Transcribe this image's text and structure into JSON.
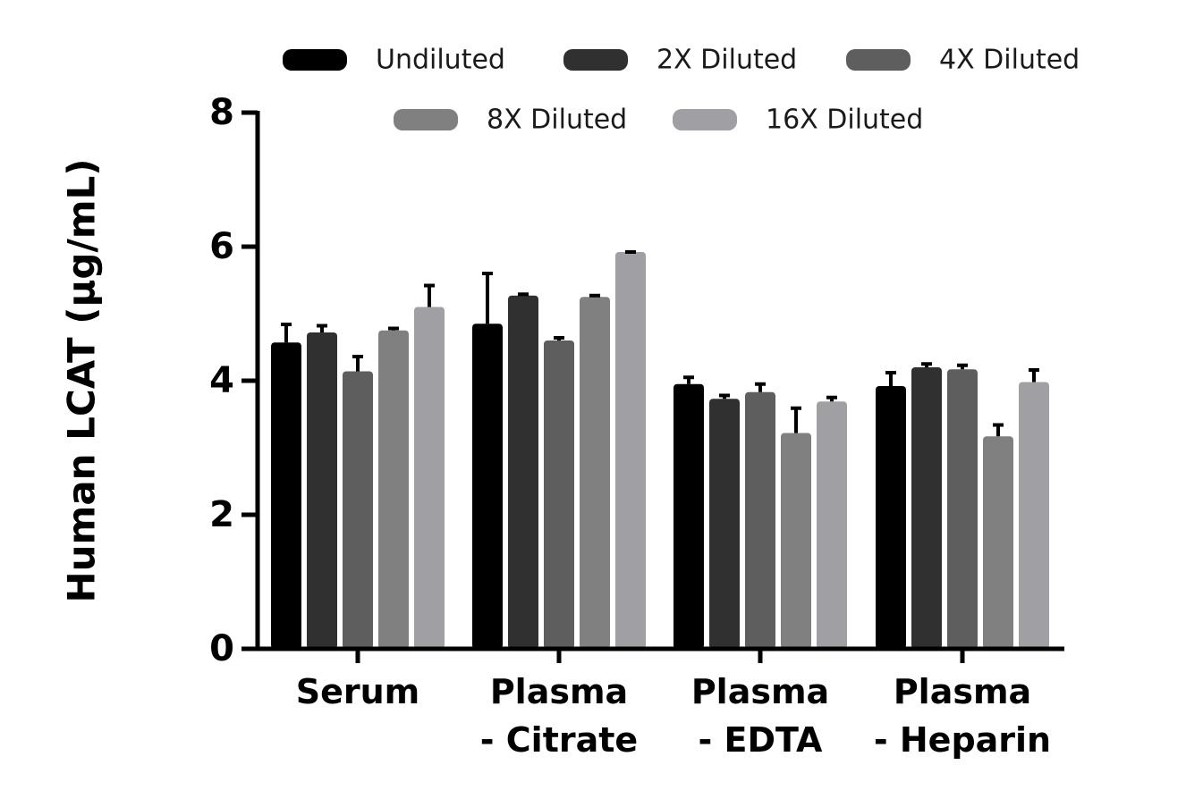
{
  "chart_data": {
    "type": "bar",
    "ylabel": "Human LCAT (μg/mL)",
    "xlabel": "",
    "ylim": [
      0,
      8
    ],
    "yticks": [
      0,
      2,
      4,
      6,
      8
    ],
    "grid": false,
    "legend_position": "top",
    "categories": [
      [
        "Serum"
      ],
      [
        "Plasma",
        "- Citrate"
      ],
      [
        "Plasma",
        "- EDTA"
      ],
      [
        "Plasma",
        "- Heparin"
      ]
    ],
    "series": [
      {
        "name": "Undiluted",
        "color": "#000000",
        "values": [
          4.57,
          4.85,
          3.95,
          3.92
        ],
        "errors": [
          0.27,
          0.75,
          0.1,
          0.2
        ]
      },
      {
        "name": "2X Diluted",
        "color": "#303030",
        "values": [
          4.72,
          5.27,
          3.73,
          4.2
        ],
        "errors": [
          0.1,
          0.02,
          0.05,
          0.05
        ]
      },
      {
        "name": "4X Diluted",
        "color": "#5e5e5e",
        "values": [
          4.14,
          4.6,
          3.83,
          4.17
        ],
        "errors": [
          0.22,
          0.04,
          0.12,
          0.06
        ]
      },
      {
        "name": "8X Diluted",
        "color": "#808080",
        "values": [
          4.75,
          5.25,
          3.22,
          3.17
        ],
        "errors": [
          0.03,
          0.02,
          0.37,
          0.17
        ]
      },
      {
        "name": "16X Diluted",
        "color": "#a0a0a4",
        "values": [
          5.1,
          5.92,
          3.69,
          3.98
        ],
        "errors": [
          0.32,
          0.0,
          0.06,
          0.18
        ]
      }
    ]
  }
}
